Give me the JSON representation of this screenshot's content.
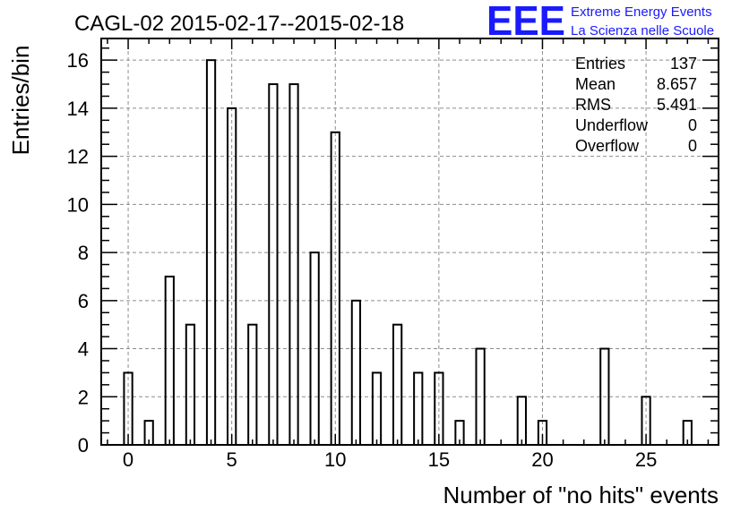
{
  "chart_data": {
    "type": "bar",
    "title": "CAGL-02 2015-02-17--2015-02-18",
    "xlabel": "Number of \"no hits\" events",
    "ylabel": "Entries/bin",
    "xlim": [
      -1.3,
      28.5
    ],
    "ylim": [
      0,
      16.9
    ],
    "bin_width": 0.4,
    "x_ticks": [
      0,
      5,
      10,
      15,
      20,
      25
    ],
    "y_ticks": [
      0,
      2,
      4,
      6,
      8,
      10,
      12,
      14,
      16
    ],
    "grid": true,
    "x": [
      0,
      1,
      2,
      3,
      4,
      5,
      6,
      7,
      8,
      9,
      10,
      11,
      12,
      13,
      14,
      15,
      16,
      17,
      19,
      20,
      23,
      25,
      27
    ],
    "values": [
      3,
      1,
      7,
      5,
      16,
      14,
      5,
      15,
      15,
      8,
      13,
      6,
      3,
      5,
      3,
      3,
      1,
      4,
      2,
      1,
      4,
      2,
      1
    ]
  },
  "stats": [
    {
      "label": "Entries",
      "value": "137"
    },
    {
      "label": "Mean",
      "value": "8.657"
    },
    {
      "label": "RMS",
      "value": "5.491"
    },
    {
      "label": "Underflow",
      "value": "0"
    },
    {
      "label": "Overflow",
      "value": "0"
    }
  ],
  "logo": {
    "letters": "EEE",
    "line1": "Extreme Energy Events",
    "line2": "La Scienza nelle Scuole"
  },
  "colors": {
    "bar_stroke": "#000000",
    "grid": "#8c8c8c",
    "logo": "#1a1aff"
  }
}
